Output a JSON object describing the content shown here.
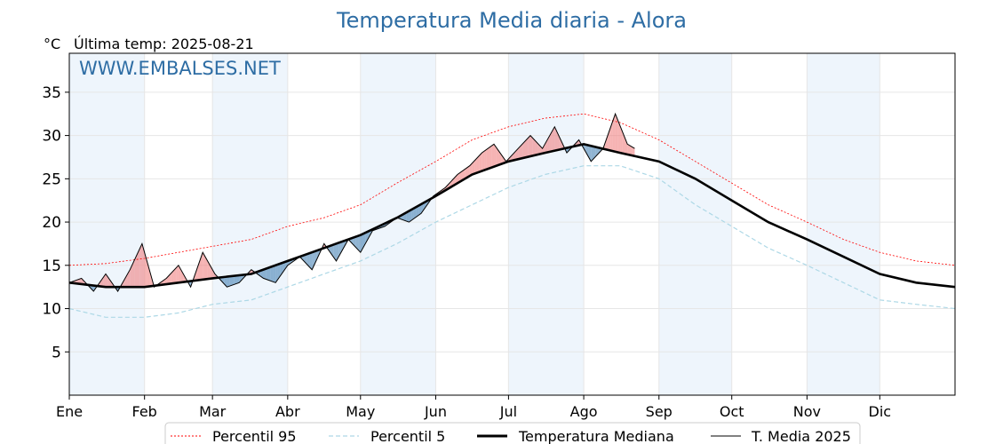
{
  "chart_data": {
    "type": "line",
    "title": "Temperatura Media diaria - Alora",
    "unit_label": "°C",
    "subtitle": "Última temp: 2025-08-21",
    "watermark": "WWW.EMBALSES.NET",
    "xlabel": "",
    "ylabel": "",
    "x_range_days": [
      0,
      365
    ],
    "ylim": [
      0,
      39.5
    ],
    "y_ticks": [
      5,
      10,
      15,
      20,
      25,
      30,
      35
    ],
    "x_tick_labels": [
      "Ene",
      "Feb",
      "Mar",
      "Abr",
      "May",
      "Jun",
      "Jul",
      "Ago",
      "Sep",
      "Oct",
      "Nov",
      "Dic"
    ],
    "grid": true,
    "legend_position": "bottom",
    "colors": {
      "p95": "#ff0000",
      "p5": "#add8e6",
      "median": "#000000",
      "current": "#000000",
      "above_fill": "#f08080",
      "below_fill": "#4682b4",
      "title": "#2e6da4",
      "band": "#eef5fc"
    },
    "series": [
      {
        "name": "Percentil 95",
        "x": [
          0,
          15,
          31,
          45,
          59,
          75,
          90,
          105,
          120,
          135,
          151,
          166,
          181,
          196,
          212,
          227,
          243,
          258,
          273,
          288,
          304,
          319,
          334,
          349,
          365
        ],
        "values": [
          15.0,
          15.2,
          15.8,
          16.5,
          17.2,
          18.0,
          19.5,
          20.5,
          22.0,
          24.5,
          27.0,
          29.5,
          31.0,
          32.0,
          32.5,
          31.5,
          29.5,
          27.0,
          24.5,
          22.0,
          20.0,
          18.0,
          16.5,
          15.5,
          15.0
        ]
      },
      {
        "name": "Percentil 5",
        "x": [
          0,
          15,
          31,
          45,
          59,
          75,
          90,
          105,
          120,
          135,
          151,
          166,
          181,
          196,
          212,
          227,
          243,
          258,
          273,
          288,
          304,
          319,
          334,
          349,
          365
        ],
        "values": [
          10.0,
          9.0,
          9.0,
          9.5,
          10.5,
          11.0,
          12.5,
          14.0,
          15.5,
          17.5,
          20.0,
          22.0,
          24.0,
          25.5,
          26.5,
          26.5,
          25.0,
          22.0,
          19.5,
          17.0,
          15.0,
          13.0,
          11.0,
          10.5,
          10.0
        ]
      },
      {
        "name": "Temperatura Mediana",
        "x": [
          0,
          15,
          31,
          45,
          59,
          75,
          90,
          105,
          120,
          135,
          151,
          166,
          181,
          196,
          212,
          227,
          243,
          258,
          273,
          288,
          304,
          319,
          334,
          349,
          365
        ],
        "values": [
          13.0,
          12.5,
          12.5,
          13.0,
          13.5,
          14.0,
          15.5,
          17.0,
          18.5,
          20.5,
          23.0,
          25.5,
          27.0,
          28.0,
          29.0,
          28.0,
          27.0,
          25.0,
          22.5,
          20.0,
          18.0,
          16.0,
          14.0,
          13.0,
          12.5
        ]
      },
      {
        "name": "T. Media 2025",
        "x": [
          0,
          5,
          10,
          15,
          20,
          25,
          30,
          35,
          40,
          45,
          50,
          55,
          60,
          65,
          70,
          75,
          80,
          85,
          90,
          95,
          100,
          105,
          110,
          115,
          120,
          125,
          130,
          135,
          140,
          145,
          150,
          155,
          160,
          165,
          170,
          175,
          180,
          185,
          190,
          195,
          200,
          205,
          210,
          215,
          220,
          225,
          230,
          233
        ],
        "values": [
          13.0,
          13.5,
          12.0,
          14.0,
          12.0,
          14.5,
          17.5,
          12.5,
          13.5,
          15.0,
          12.5,
          16.5,
          14.0,
          12.5,
          13.0,
          14.5,
          13.5,
          13.0,
          15.0,
          16.0,
          14.5,
          17.5,
          15.5,
          18.0,
          16.5,
          19.0,
          19.5,
          20.5,
          20.0,
          21.0,
          23.0,
          24.0,
          25.5,
          26.5,
          28.0,
          29.0,
          27.0,
          28.5,
          30.0,
          28.5,
          31.0,
          28.0,
          29.5,
          27.0,
          28.5,
          32.5,
          29.0,
          28.5
        ]
      }
    ]
  }
}
